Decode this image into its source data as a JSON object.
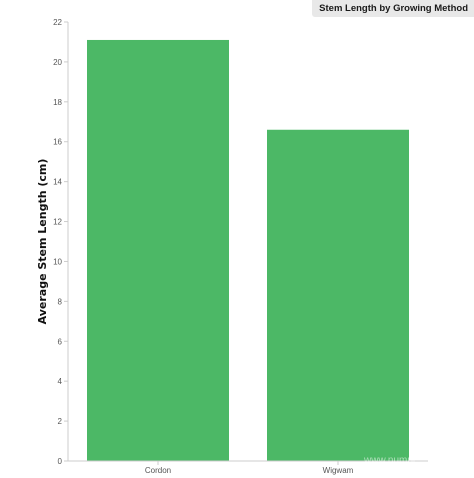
{
  "chart_data": {
    "type": "bar",
    "title": "Stem Length by Growing Method",
    "xlabel": "",
    "ylabel": "Average Stem Length (cm)",
    "categories": [
      "Cordon",
      "Wigwam"
    ],
    "values": [
      21.1,
      16.6
    ],
    "ylim": [
      0,
      22
    ],
    "yticks": [
      0,
      2,
      4,
      6,
      8,
      10,
      12,
      14,
      16,
      18,
      20,
      22
    ],
    "bar_color": "#4cb866",
    "grid": false,
    "legend": "none"
  },
  "watermark": {
    "text": "www.numpl"
  }
}
